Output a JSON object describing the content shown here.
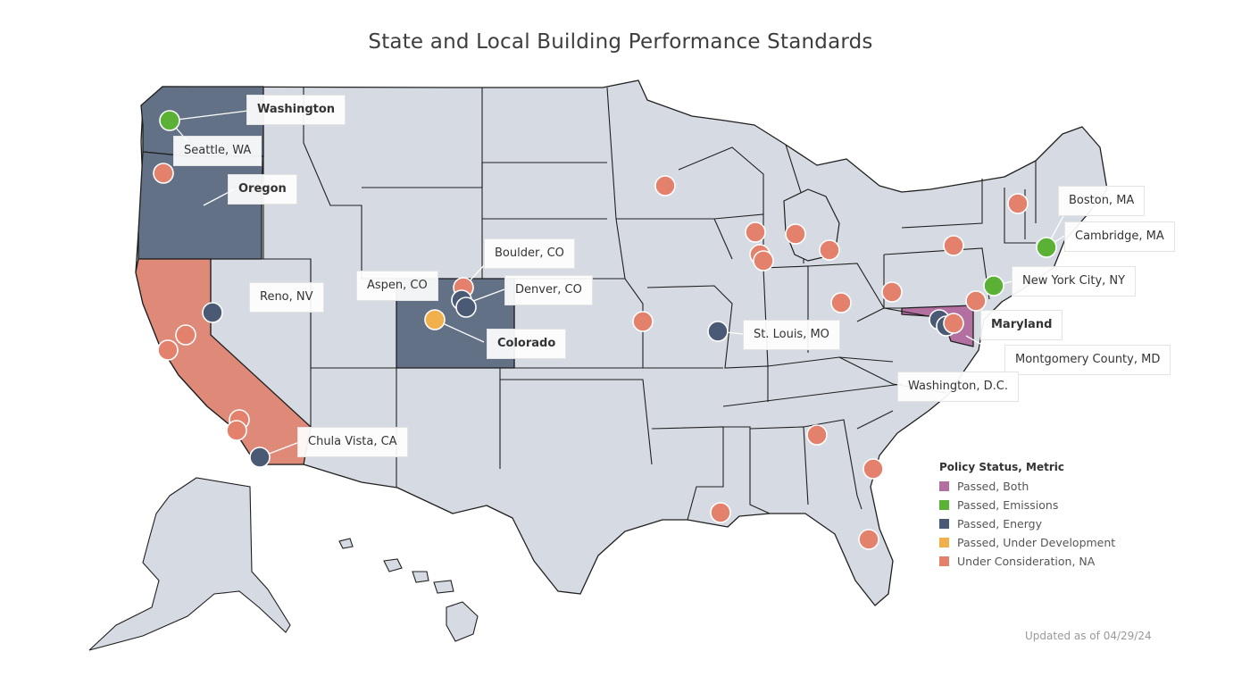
{
  "title": "State and Local Building Performance Standards",
  "colors": {
    "passed_both": "#b26fa0",
    "passed_emissions": "#5ab135",
    "passed_energy": "#4a5a74",
    "passed_under_development": "#f2b04c",
    "under_consideration": "#e3816d",
    "state_default": "#d6dbe3",
    "state_energy": "#637186",
    "state_consideration": "#df8a79"
  },
  "states": [
    {
      "name": "Washington",
      "status": "Passed, Energy"
    },
    {
      "name": "Oregon",
      "status": "Passed, Energy"
    },
    {
      "name": "Colorado",
      "status": "Passed, Energy"
    },
    {
      "name": "California",
      "status": "Under Consideration, NA"
    },
    {
      "name": "Maryland",
      "status": "Passed, Both"
    }
  ],
  "labels": {
    "washington": "Washington",
    "seattle": "Seattle, WA",
    "oregon": "Oregon",
    "reno": "Reno, NV",
    "aspen": "Aspen, CO",
    "boulder": "Boulder, CO",
    "denver": "Denver, CO",
    "colorado": "Colorado",
    "chula_vista": "Chula Vista, CA",
    "st_louis": "St. Louis, MO",
    "boston": "Boston, MA",
    "cambridge": "Cambridge, MA",
    "nyc": "New York City, NY",
    "maryland": "Maryland",
    "montgomery": "Montgomery County, MD",
    "dc": "Washington, D.C."
  },
  "legend": {
    "title": "Policy Status, Metric",
    "items": [
      {
        "label": "Passed, Both",
        "color": "#b26fa0"
      },
      {
        "label": "Passed, Emissions",
        "color": "#5ab135"
      },
      {
        "label": "Passed, Energy",
        "color": "#4a5a74"
      },
      {
        "label": "Passed, Under Development",
        "color": "#f2b04c"
      },
      {
        "label": "Under Consideration, NA",
        "color": "#e3816d"
      }
    ]
  },
  "updated": "Updated as of 04/29/24",
  "markers": [
    {
      "city": "Seattle, WA",
      "status": "Passed, Emissions"
    },
    {
      "city": "Reno, NV",
      "status": "Passed, Energy"
    },
    {
      "city": "Aspen, CO",
      "status": "Passed, Under Development"
    },
    {
      "city": "Boulder, CO",
      "status": "Under Consideration, NA"
    },
    {
      "city": "Denver, CO",
      "status": "Passed, Energy"
    },
    {
      "city": "Chula Vista, CA",
      "status": "Passed, Energy"
    },
    {
      "city": "St. Louis, MO",
      "status": "Passed, Energy"
    },
    {
      "city": "Boston, MA",
      "status": "Under Consideration, NA"
    },
    {
      "city": "Cambridge, MA",
      "status": "Passed, Emissions"
    },
    {
      "city": "New York City, NY",
      "status": "Passed, Emissions"
    },
    {
      "city": "Montgomery County, MD",
      "status": "Passed, Energy"
    },
    {
      "city": "Washington, D.C.",
      "status": "Passed, Energy"
    }
  ]
}
